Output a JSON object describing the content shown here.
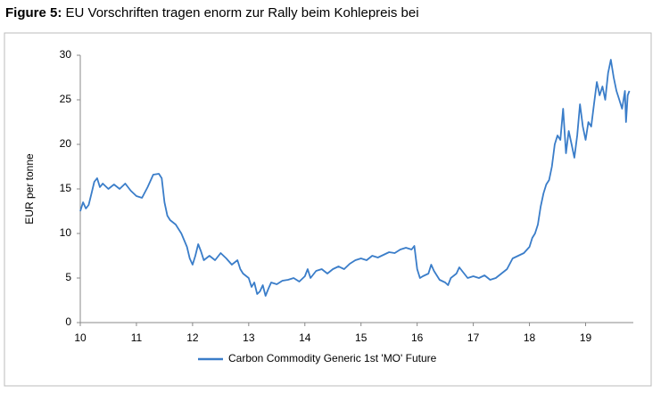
{
  "chart_data": {
    "type": "line",
    "title_label": "Figure 5:",
    "title": "EU Vorschriften tragen enorm zur Rally beim Kohlepreis bei",
    "y_label": "EUR per tonne",
    "xlim": [
      10,
      19.85
    ],
    "xticks": [
      10,
      11,
      12,
      13,
      14,
      15,
      16,
      17,
      18,
      19
    ],
    "ylim": [
      0,
      30
    ],
    "yticks": [
      0,
      5,
      10,
      15,
      20,
      25,
      30
    ],
    "grid": false,
    "legend": "bottom",
    "series": [
      {
        "name": "Carbon Commodity Generic 1st 'MO' Future",
        "color": "#3a7dc9",
        "x": [
          10.0,
          10.05,
          10.1,
          10.15,
          10.2,
          10.25,
          10.3,
          10.35,
          10.4,
          10.5,
          10.6,
          10.7,
          10.8,
          10.9,
          11.0,
          11.1,
          11.2,
          11.3,
          11.4,
          11.45,
          11.5,
          11.55,
          11.6,
          11.7,
          11.8,
          11.9,
          11.95,
          12.0,
          12.05,
          12.1,
          12.15,
          12.2,
          12.3,
          12.4,
          12.5,
          12.6,
          12.7,
          12.8,
          12.85,
          12.9,
          13.0,
          13.05,
          13.1,
          13.15,
          13.2,
          13.25,
          13.3,
          13.35,
          13.4,
          13.5,
          13.6,
          13.7,
          13.8,
          13.9,
          14.0,
          14.05,
          14.1,
          14.2,
          14.3,
          14.4,
          14.5,
          14.6,
          14.7,
          14.8,
          14.9,
          15.0,
          15.1,
          15.2,
          15.3,
          15.4,
          15.5,
          15.6,
          15.7,
          15.8,
          15.9,
          15.95,
          16.0,
          16.05,
          16.1,
          16.2,
          16.25,
          16.3,
          16.4,
          16.5,
          16.55,
          16.6,
          16.7,
          16.75,
          16.8,
          16.9,
          17.0,
          17.1,
          17.2,
          17.3,
          17.4,
          17.5,
          17.6,
          17.7,
          17.8,
          17.9,
          18.0,
          18.05,
          18.1,
          18.15,
          18.2,
          18.25,
          18.3,
          18.35,
          18.4,
          18.45,
          18.5,
          18.55,
          18.6,
          18.65,
          18.7,
          18.75,
          18.8,
          18.85,
          18.9,
          18.95,
          19.0,
          19.05,
          19.1,
          19.15,
          19.2,
          19.25,
          19.3,
          19.35,
          19.4,
          19.45,
          19.5,
          19.55,
          19.6,
          19.65,
          19.7,
          19.72,
          19.75,
          19.78
        ],
        "values": [
          12.5,
          13.5,
          12.8,
          13.2,
          14.5,
          15.8,
          16.2,
          15.2,
          15.6,
          15.0,
          15.5,
          15.0,
          15.6,
          14.8,
          14.2,
          14.0,
          15.2,
          16.6,
          16.7,
          16.2,
          13.5,
          12.0,
          11.5,
          11.0,
          10.0,
          8.5,
          7.2,
          6.5,
          7.5,
          8.8,
          8.0,
          7.0,
          7.5,
          7.0,
          7.8,
          7.2,
          6.5,
          7.0,
          6.0,
          5.5,
          5.0,
          4.0,
          4.5,
          3.2,
          3.5,
          4.2,
          3.0,
          3.8,
          4.5,
          4.3,
          4.7,
          4.8,
          5.0,
          4.6,
          5.2,
          6.0,
          5.0,
          5.8,
          6.0,
          5.5,
          6.0,
          6.3,
          6.0,
          6.6,
          7.0,
          7.2,
          7.0,
          7.5,
          7.3,
          7.6,
          7.9,
          7.8,
          8.2,
          8.4,
          8.2,
          8.6,
          6.0,
          5.0,
          5.2,
          5.5,
          6.5,
          5.8,
          4.8,
          4.5,
          4.2,
          5.0,
          5.5,
          6.2,
          5.8,
          5.0,
          5.2,
          5.0,
          5.3,
          4.8,
          5.0,
          5.5,
          6.0,
          7.2,
          7.5,
          7.8,
          8.5,
          9.5,
          10.0,
          11.0,
          13.0,
          14.5,
          15.5,
          16.0,
          17.5,
          20.0,
          21.0,
          20.5,
          24.0,
          19.0,
          21.5,
          20.0,
          18.5,
          21.0,
          24.5,
          22.0,
          20.5,
          22.5,
          22.0,
          24.5,
          27.0,
          25.5,
          26.5,
          25.0,
          28.0,
          29.5,
          27.5,
          26.0,
          25.0,
          24.0,
          26.0,
          22.5,
          25.5,
          26.0
        ]
      }
    ]
  }
}
